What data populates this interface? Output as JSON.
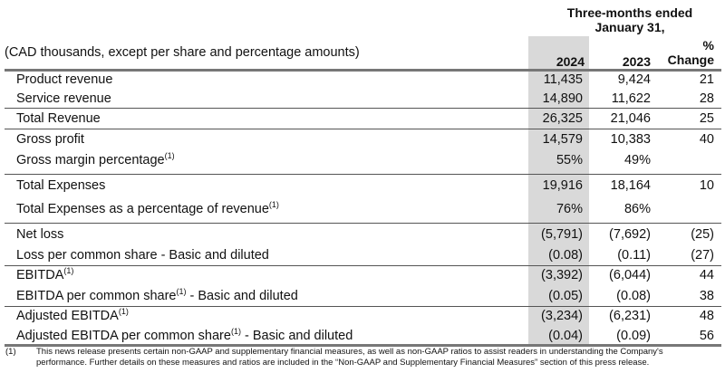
{
  "header": {
    "period_line1": "Three-months ended",
    "period_line2": "January 31,",
    "units_note": "(CAD thousands, except per share and percentage amounts)",
    "col_2024": "2024",
    "col_2023": "2023",
    "col_change_line1": "%",
    "col_change_line2": "Change"
  },
  "rows": [
    {
      "label": "Product revenue",
      "sup": "",
      "suffix": "",
      "v2024": "11,435",
      "v2023": "9,424",
      "change": "21"
    },
    {
      "label": "Service revenue",
      "sup": "",
      "suffix": "",
      "v2024": "14,890",
      "v2023": "11,622",
      "change": "28"
    },
    {
      "label": "Total Revenue",
      "sup": "",
      "suffix": "",
      "v2024": "26,325",
      "v2023": "21,046",
      "change": "25"
    },
    {
      "label": "Gross profit",
      "sup": "",
      "suffix": "",
      "v2024": "14,579",
      "v2023": "10,383",
      "change": "40"
    },
    {
      "label": "Gross margin percentage",
      "sup": "(1)",
      "suffix": "",
      "v2024": "55%",
      "v2023": "49%",
      "change": ""
    },
    {
      "label": "Total Expenses",
      "sup": "",
      "suffix": "",
      "v2024": "19,916",
      "v2023": "18,164",
      "change": "10"
    },
    {
      "label": "Total Expenses as a percentage of revenue",
      "sup": "(1)",
      "suffix": "",
      "v2024": "76%",
      "v2023": "86%",
      "change": ""
    },
    {
      "label": "Net loss",
      "sup": "",
      "suffix": "",
      "v2024": "(5,791)",
      "v2023": "(7,692)",
      "change": "(25)"
    },
    {
      "label": "Loss per common share - Basic and diluted",
      "sup": "",
      "suffix": "",
      "v2024": "(0.08)",
      "v2023": "(0.11)",
      "change": "(27)"
    },
    {
      "label": "EBITDA",
      "sup": "(1)",
      "suffix": "",
      "v2024": "(3,392)",
      "v2023": "(6,044)",
      "change": "44"
    },
    {
      "label": "EBITDA per common share",
      "sup": "(1)",
      "suffix": " - Basic and diluted",
      "v2024": "(0.05)",
      "v2023": "(0.08)",
      "change": "38"
    },
    {
      "label": "Adjusted EBITDA",
      "sup": "(1)",
      "suffix": "",
      "v2024": "(3,234)",
      "v2023": "(6,231)",
      "change": "48"
    },
    {
      "label": "Adjusted EBITDA per common share",
      "sup": "(1)",
      "suffix": " - Basic and diluted",
      "v2024": "(0.04)",
      "v2023": "(0.09)",
      "change": "56"
    }
  ],
  "footnote": {
    "marker": "(1)",
    "line1": "This news release presents certain non-GAAP and supplementary financial measures, as well as non-GAAP ratios to assist readers in understanding the Company's",
    "line2": "performance. Further details on these measures and ratios are included in the “Non-GAAP and Supplementary Financial Measures” section of this press release."
  }
}
